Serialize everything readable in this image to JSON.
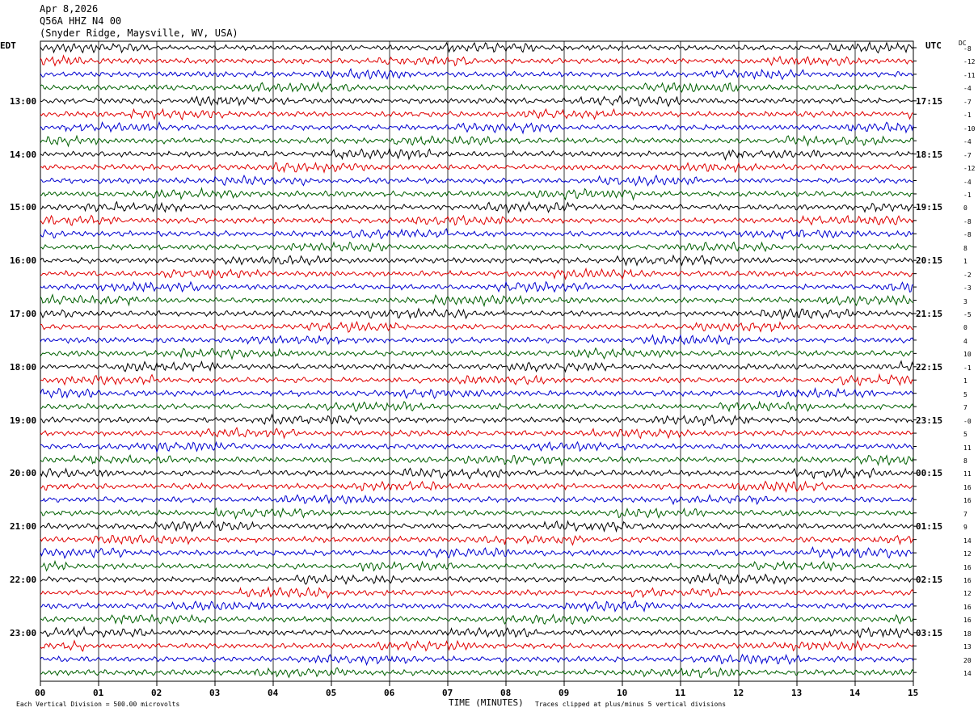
{
  "header": {
    "date": "Apr 8,2026",
    "station": "Q56A HHZ N4 00",
    "location": "(Snyder Ridge, Maysville, WV, USA)"
  },
  "left_tz": "EDT",
  "right_tz": "UTC",
  "dc_header": "DC",
  "footer": {
    "scale_note": "Each Vertical Division =  500.00 microvolts",
    "clip_note": "Traces clipped at plus/minus 5 vertical divisions",
    "x_title": "TIME (MINUTES)"
  },
  "chart_data": {
    "type": "line",
    "title": "",
    "xlabel": "TIME (MINUTES)",
    "ylabel": "",
    "xlim": [
      0,
      15
    ],
    "x_ticks": [
      "00",
      "01",
      "02",
      "03",
      "04",
      "05",
      "06",
      "07",
      "08",
      "09",
      "10",
      "11",
      "12",
      "13",
      "14",
      "15"
    ],
    "grid": true,
    "trace_colors": [
      "#000000",
      "#e00000",
      "#0000d0",
      "#006000"
    ],
    "rows_count_note": "one trace per 15 minutes",
    "left_time_labels": [
      "13:00",
      "14:00",
      "15:00",
      "16:00",
      "17:00",
      "18:00",
      "19:00",
      "20:00",
      "21:00",
      "22:00",
      "23:00"
    ],
    "right_time_labels": [
      "17:15",
      "18:15",
      "19:15",
      "20:15",
      "21:15",
      "22:15",
      "23:15",
      "00:15",
      "01:15",
      "02:15",
      "03:15"
    ],
    "label_first_row": 4,
    "dc_offsets": [
      "-8",
      "-12",
      "-11",
      "-4",
      "-7",
      "-1",
      "-10",
      "-4",
      "-7",
      "-12",
      "-4",
      "-1",
      "0",
      "-8",
      "-8",
      "8",
      "1",
      "-2",
      "-3",
      "3",
      "-5",
      "0",
      "4",
      "10",
      "-1",
      "1",
      "5",
      "7",
      "-0",
      "5",
      "11",
      "8",
      "11",
      "16",
      "16",
      "7",
      "9",
      "14",
      "12",
      "16",
      "16",
      "12",
      "16",
      "16",
      "18",
      "13",
      "20",
      "14"
    ]
  }
}
